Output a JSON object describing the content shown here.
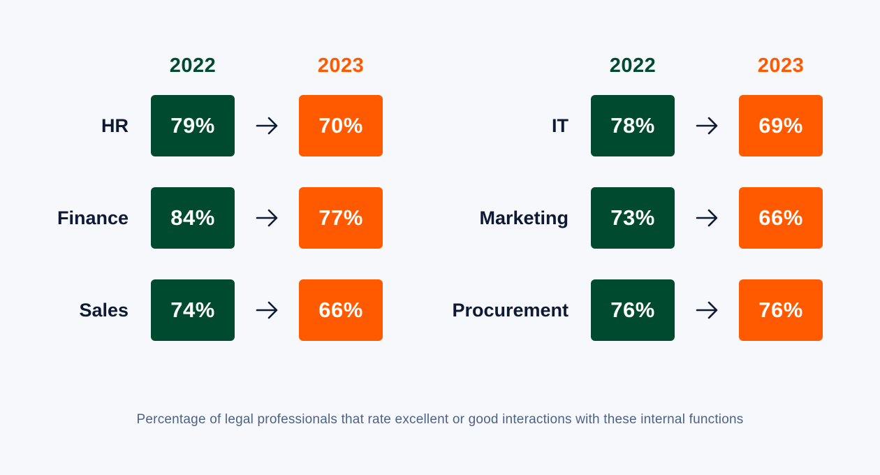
{
  "chart_data": {
    "type": "table",
    "years": [
      "2022",
      "2023"
    ],
    "colors": {
      "2022": "#004a2f",
      "2023": "#ff5a00"
    },
    "groups": [
      {
        "rows": [
          {
            "label": "HR",
            "v2022": "79%",
            "v2023": "70%"
          },
          {
            "label": "Finance",
            "v2022": "84%",
            "v2023": "77%"
          },
          {
            "label": "Sales",
            "v2022": "74%",
            "v2023": "66%"
          }
        ]
      },
      {
        "rows": [
          {
            "label": "IT",
            "v2022": "78%",
            "v2023": "69%"
          },
          {
            "label": "Marketing",
            "v2022": "73%",
            "v2023": "66%"
          },
          {
            "label": "Procurement",
            "v2022": "76%",
            "v2023": "76%"
          }
        ]
      }
    ],
    "caption": "Percentage of legal professionals that rate excellent or good interactions with these internal functions"
  }
}
